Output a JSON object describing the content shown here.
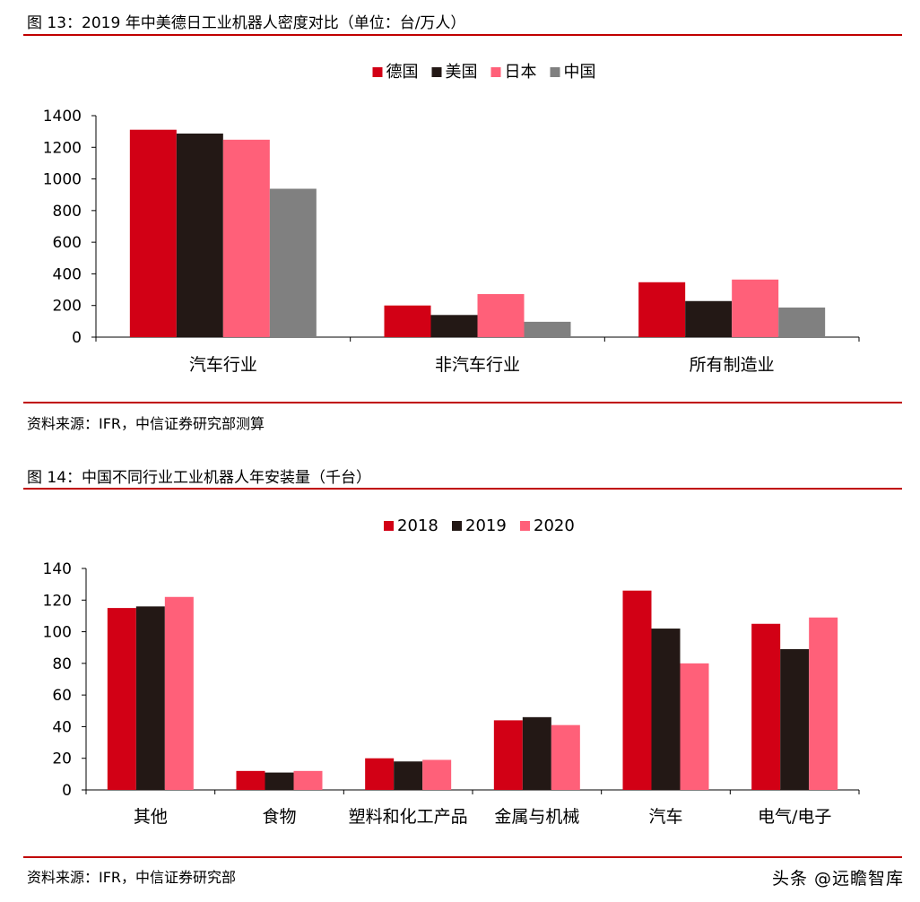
{
  "figure13": {
    "title": "图 13：2019 年中美德日工业机器人密度对比（单位：台/万人）",
    "source": "资料来源：IFR，中信证券研究部测算"
  },
  "figure14": {
    "title": "图 14：中国不同行业工业机器人年安装量（千台）",
    "source": "资料来源：IFR，中信证券研究部"
  },
  "watermark": "头条 @远瞻智库",
  "colors": {
    "rule": "#c00000"
  },
  "chart_data": [
    {
      "type": "bar",
      "categories": [
        "汽车行业",
        "非汽车行业",
        "所有制造业"
      ],
      "series": [
        {
          "name": "德国",
          "color": "#d20015",
          "values": [
            1311,
            200,
            347
          ]
        },
        {
          "name": "美国",
          "color": "#231815",
          "values": [
            1287,
            140,
            228
          ]
        },
        {
          "name": "日本",
          "color": "#ff6079",
          "values": [
            1248,
            272,
            364
          ]
        },
        {
          "name": "中国",
          "color": "#808080",
          "values": [
            938,
            97,
            187
          ]
        }
      ],
      "ylim": [
        0,
        1400
      ],
      "yticks": [
        0,
        200,
        400,
        600,
        800,
        1000,
        1200,
        1400
      ],
      "legend_position": "top-center",
      "grid": false
    },
    {
      "type": "bar",
      "categories": [
        "其他",
        "食物",
        "塑料和化工产品",
        "金属与机械",
        "汽车",
        "电气/电子"
      ],
      "series": [
        {
          "name": "2018",
          "color": "#d20015",
          "values": [
            115,
            12,
            20,
            44,
            126,
            105
          ]
        },
        {
          "name": "2019",
          "color": "#231815",
          "values": [
            116,
            11,
            18,
            46,
            102,
            89
          ]
        },
        {
          "name": "2020",
          "color": "#ff6079",
          "values": [
            122,
            12,
            19,
            41,
            80,
            109
          ]
        }
      ],
      "ylim": [
        0,
        140
      ],
      "yticks": [
        0,
        20,
        40,
        60,
        80,
        100,
        120,
        140
      ],
      "legend_position": "top-center",
      "grid": false
    }
  ]
}
